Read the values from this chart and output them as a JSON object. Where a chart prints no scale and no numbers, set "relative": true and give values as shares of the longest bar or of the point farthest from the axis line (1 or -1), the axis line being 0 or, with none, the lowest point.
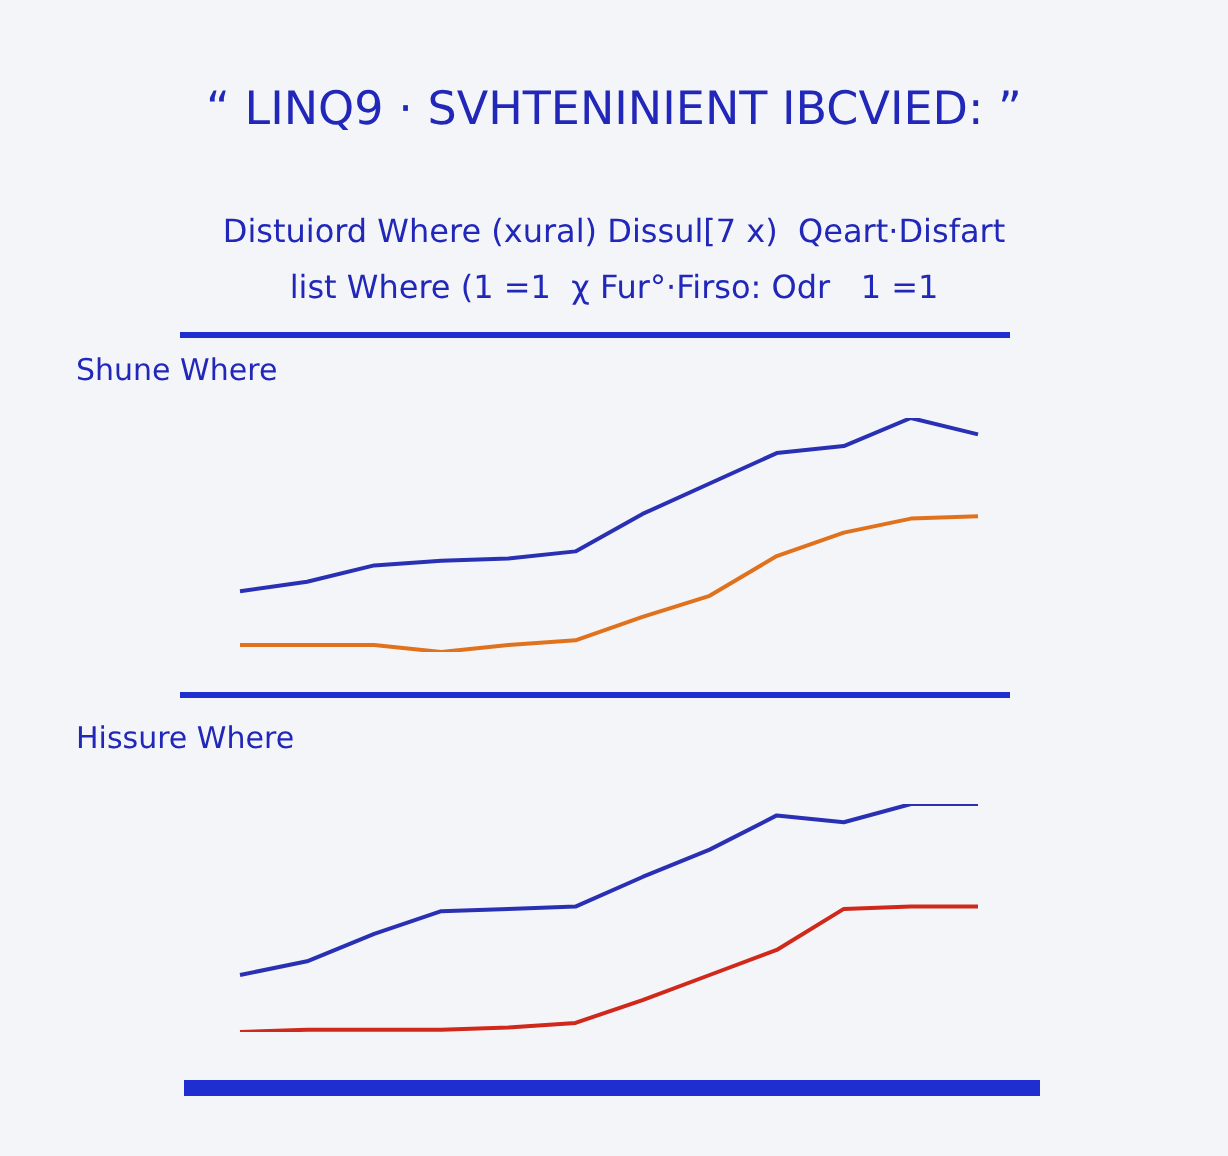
{
  "chart_data": [
    {
      "type": "line",
      "title": "“ LINQ9 ·   SVHTENINIENT IBCVIED: ”",
      "subtitle": "Distuiord Where (xural) Dissul[7 x)  Qeart·Disfart\nlist Where (1 =1  χ Fur°·Firso: Odr   1 =1",
      "annotations": [
        "Shune Where"
      ],
      "relative": true,
      "categories": [
        null,
        null,
        null,
        null,
        null,
        null,
        null,
        null,
        null,
        null,
        null,
        null
      ],
      "series": [
        {
          "color": "#2a30b4",
          "values": [
            0.26,
            0.3,
            0.37,
            0.39,
            0.4,
            0.43,
            0.59,
            0.72,
            0.85,
            0.88,
            1.0,
            0.93
          ]
        },
        {
          "color": "#e0721e",
          "values": [
            0.03,
            0.03,
            0.03,
            0,
            0.03,
            0.05,
            0.15,
            0.24,
            0.41,
            0.51,
            0.57,
            0.58
          ]
        }
      ]
    },
    {
      "type": "line",
      "title": "Hissure Where",
      "relative": true,
      "categories": [
        null,
        null,
        null,
        null,
        null,
        null,
        null,
        null,
        null,
        null,
        null,
        null
      ],
      "series": [
        {
          "color": "#2a30b4",
          "values": [
            0.25,
            0.31,
            0.43,
            0.53,
            0.54,
            0.55,
            0.68,
            0.8,
            0.95,
            0.92,
            1.0,
            1.0
          ]
        },
        {
          "color": "#d0281a",
          "values": [
            0,
            0.01,
            0.01,
            0.01,
            0.02,
            0.04,
            0.14,
            0.25,
            0.36,
            0.54,
            0.55,
            0.55
          ]
        }
      ]
    }
  ]
}
